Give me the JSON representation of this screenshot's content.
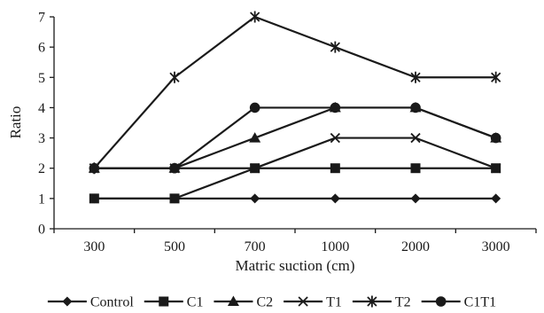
{
  "chart_data": {
    "type": "line",
    "title": "",
    "xlabel": "Matric suction (cm)",
    "ylabel": "Ratio",
    "categories": [
      "300",
      "500",
      "700",
      "1000",
      "2000",
      "3000"
    ],
    "ylim": [
      0,
      7
    ],
    "yticks": [
      "0",
      "1",
      "2",
      "3",
      "4",
      "5",
      "6",
      "7"
    ],
    "grid": false,
    "legend_position": "bottom",
    "line_color": "#1a1a1a",
    "series": [
      {
        "name": "Control",
        "marker": "diamond",
        "values": [
          1,
          1,
          1,
          1,
          1,
          1
        ]
      },
      {
        "name": "C1",
        "marker": "square",
        "values": [
          1,
          1,
          2,
          2,
          2,
          2
        ]
      },
      {
        "name": "C2",
        "marker": "triangle",
        "values": [
          2,
          2,
          3,
          4,
          4,
          3
        ]
      },
      {
        "name": "T1",
        "marker": "x",
        "values": [
          2,
          2,
          2,
          3,
          3,
          2
        ]
      },
      {
        "name": "T2",
        "marker": "star",
        "values": [
          2,
          5,
          7,
          6,
          5,
          5
        ]
      },
      {
        "name": "C1T1",
        "marker": "circle",
        "values": [
          2,
          2,
          4,
          4,
          4,
          3
        ]
      }
    ]
  }
}
